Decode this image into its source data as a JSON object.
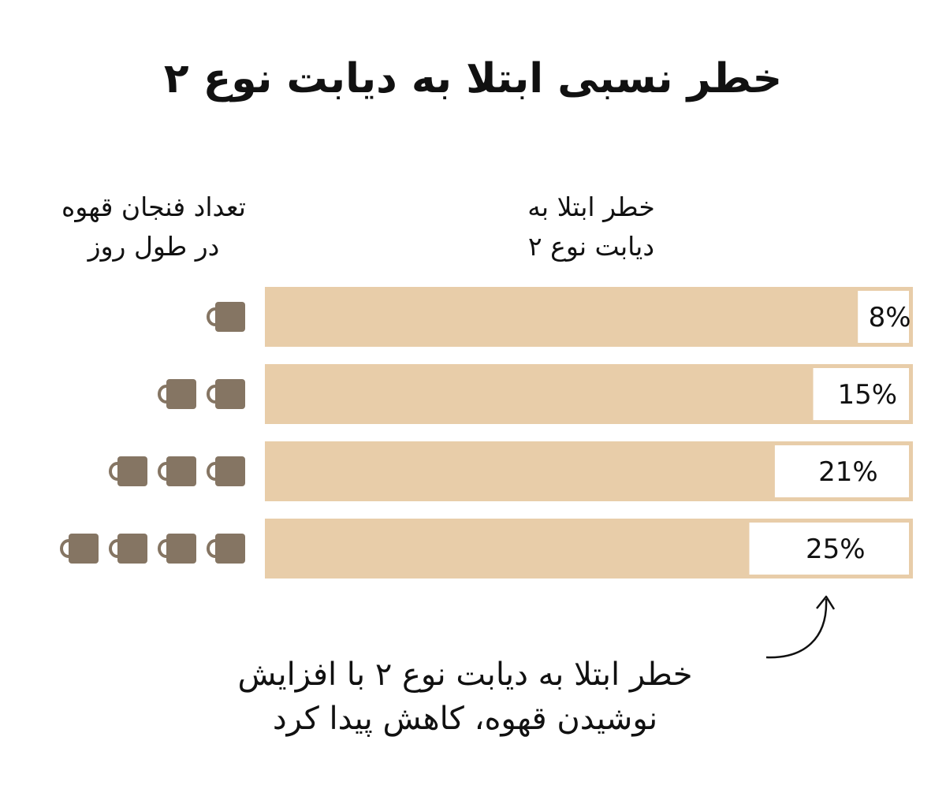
{
  "title": "خطر نسبی ابتلا به دیابت نوع ۲",
  "headers": {
    "cups": [
      "تعداد فنجان قهوه",
      "در طول روز"
    ],
    "risk": [
      "خطر ابتلا به",
      "دیابت نوع ۲"
    ]
  },
  "annotation": [
    "خطر ابتلا به دیابت نوع ۲ با افزایش",
    "نوشیدن قهوه، کاهش پیدا کرد"
  ],
  "colors": {
    "bar": "#e8cda9",
    "label_box": "#ffffff",
    "cup": "#857563",
    "text": "#111111"
  },
  "chart_data": {
    "type": "bar",
    "orientation": "horizontal",
    "categories": [
      1,
      2,
      3,
      4
    ],
    "category_meaning": "cups of coffee per day (shown as cup icons)",
    "values": [
      8,
      15,
      21,
      25
    ],
    "value_labels": [
      "8%",
      "15%",
      "21%",
      "25%"
    ],
    "value_axis": "relative risk reduction for type 2 diabetes (%), shown as white box from the right end of bar",
    "title": "خطر نسبی ابتلا به دیابت نوع ۲"
  }
}
